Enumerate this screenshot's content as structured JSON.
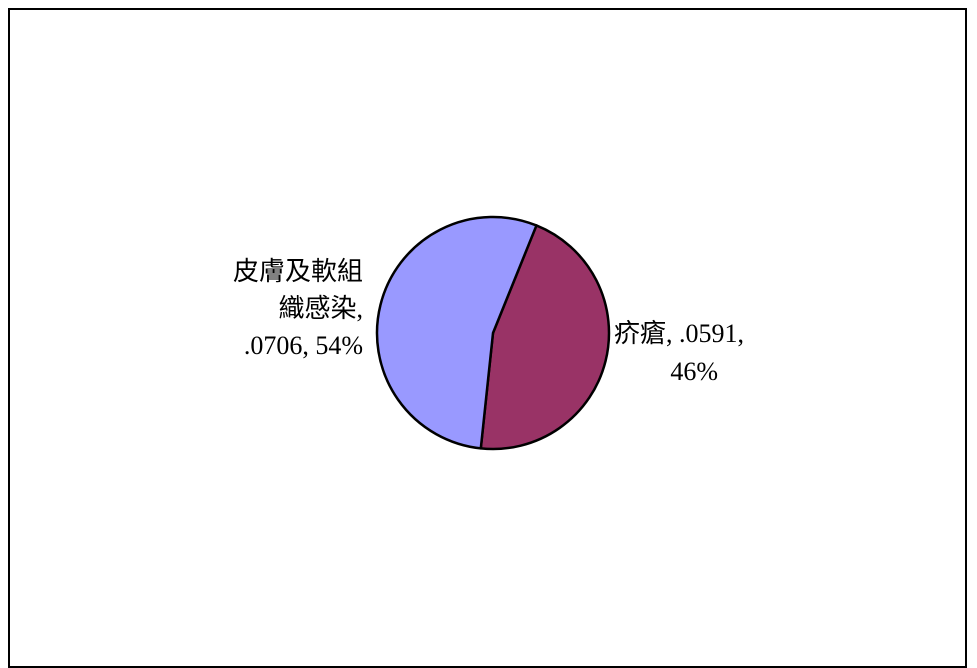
{
  "chart_data": {
    "type": "pie",
    "title": "",
    "slices": [
      {
        "label": "疥瘡",
        "value": 0.0591,
        "percent": "46%",
        "color": "#993366",
        "label_lines": [
          "疥瘡, .0591,",
          "46%"
        ]
      },
      {
        "label": "皮膚及軟組織感染",
        "value": 0.0706,
        "percent": "54%",
        "color": "#9999ff",
        "label_lines": [
          "皮膚及軟組",
          "織感染,",
          ".0706, 54%"
        ]
      }
    ],
    "legend": "none",
    "outline_color": "#000000",
    "border_color": "#000000"
  }
}
